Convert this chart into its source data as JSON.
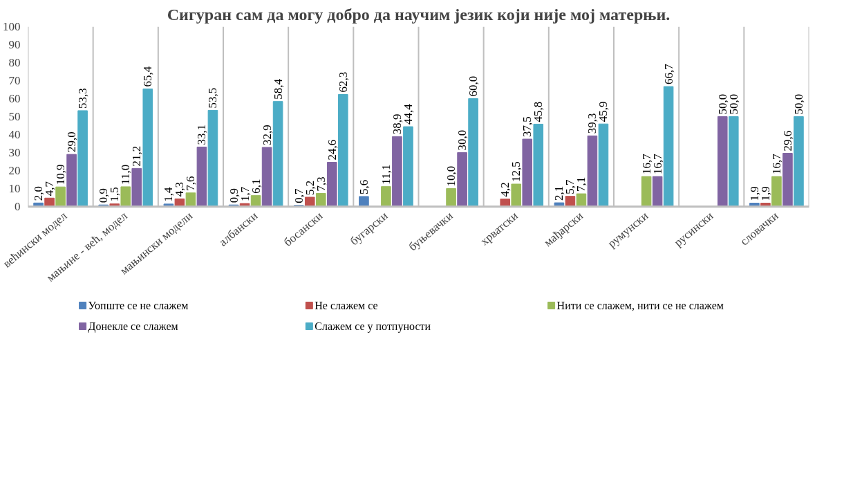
{
  "chart_data": {
    "type": "bar",
    "title": "Сигуран сам да могу добро да научим језик који није мој матерњи.",
    "categories": [
      "већински модел",
      "мањине - већ, модел",
      "мањински модели",
      "албански",
      "босански",
      "бугарски",
      "буњевачки",
      "хрватски",
      "мађарски",
      "румунски",
      "русински",
      "словачки"
    ],
    "series": [
      {
        "name": "Уопште се не слажем",
        "color": "#4f81bd",
        "values": [
          2.0,
          0.9,
          1.4,
          0.9,
          0.7,
          5.6,
          null,
          null,
          2.1,
          null,
          null,
          1.9
        ],
        "value_labels": [
          "2,0",
          "0,9",
          "1,4",
          "0,9",
          "0,7",
          "5,6",
          null,
          null,
          "2,1",
          null,
          null,
          "1,9"
        ]
      },
      {
        "name": "Не слажем се",
        "color": "#c0504d",
        "values": [
          4.7,
          1.5,
          4.3,
          1.7,
          5.2,
          null,
          null,
          4.2,
          5.7,
          null,
          null,
          1.9
        ],
        "value_labels": [
          "4,7",
          "1,5",
          "4,3",
          "1,7",
          "5,2",
          null,
          null,
          "4,2",
          "5,7",
          null,
          null,
          "1,9"
        ]
      },
      {
        "name": "Нити се слажем, нити се не слажем",
        "color": "#9bbb59",
        "values": [
          10.9,
          11.0,
          7.6,
          6.1,
          7.3,
          11.1,
          10.0,
          12.5,
          7.1,
          16.7,
          null,
          16.7
        ],
        "value_labels": [
          "10,9",
          "11,0",
          "7,6",
          "6,1",
          "7,3",
          "11,1",
          "10,0",
          "12,5",
          "7,1",
          "16,7",
          null,
          "16,7"
        ]
      },
      {
        "name": "Донекле се слажем",
        "color": "#8064a2",
        "values": [
          29.0,
          21.2,
          33.1,
          32.9,
          24.6,
          38.9,
          30.0,
          37.5,
          39.3,
          16.7,
          50.0,
          29.6
        ],
        "value_labels": [
          "29,0",
          "21,2",
          "33,1",
          "32,9",
          "24,6",
          "38,9",
          "30,0",
          "37,5",
          "39,3",
          "16,7",
          "50,0",
          "29,6"
        ]
      },
      {
        "name": "Слажем се у потпуности",
        "color": "#4bacc6",
        "values": [
          53.3,
          65.4,
          53.5,
          58.4,
          62.3,
          44.4,
          60.0,
          45.8,
          45.9,
          66.7,
          50.0,
          50.0
        ],
        "value_labels": [
          "53,3",
          "65,4",
          "53,5",
          "58,4",
          "62,3",
          "44,4",
          "60,0",
          "45,8",
          "45,9",
          "66,7",
          "50,0",
          "50,0"
        ]
      }
    ],
    "ylim": [
      0,
      100
    ],
    "yticks": [
      0,
      10,
      20,
      30,
      40,
      50,
      60,
      70,
      80,
      90,
      100
    ],
    "grid": "x",
    "legend": "bottom"
  }
}
